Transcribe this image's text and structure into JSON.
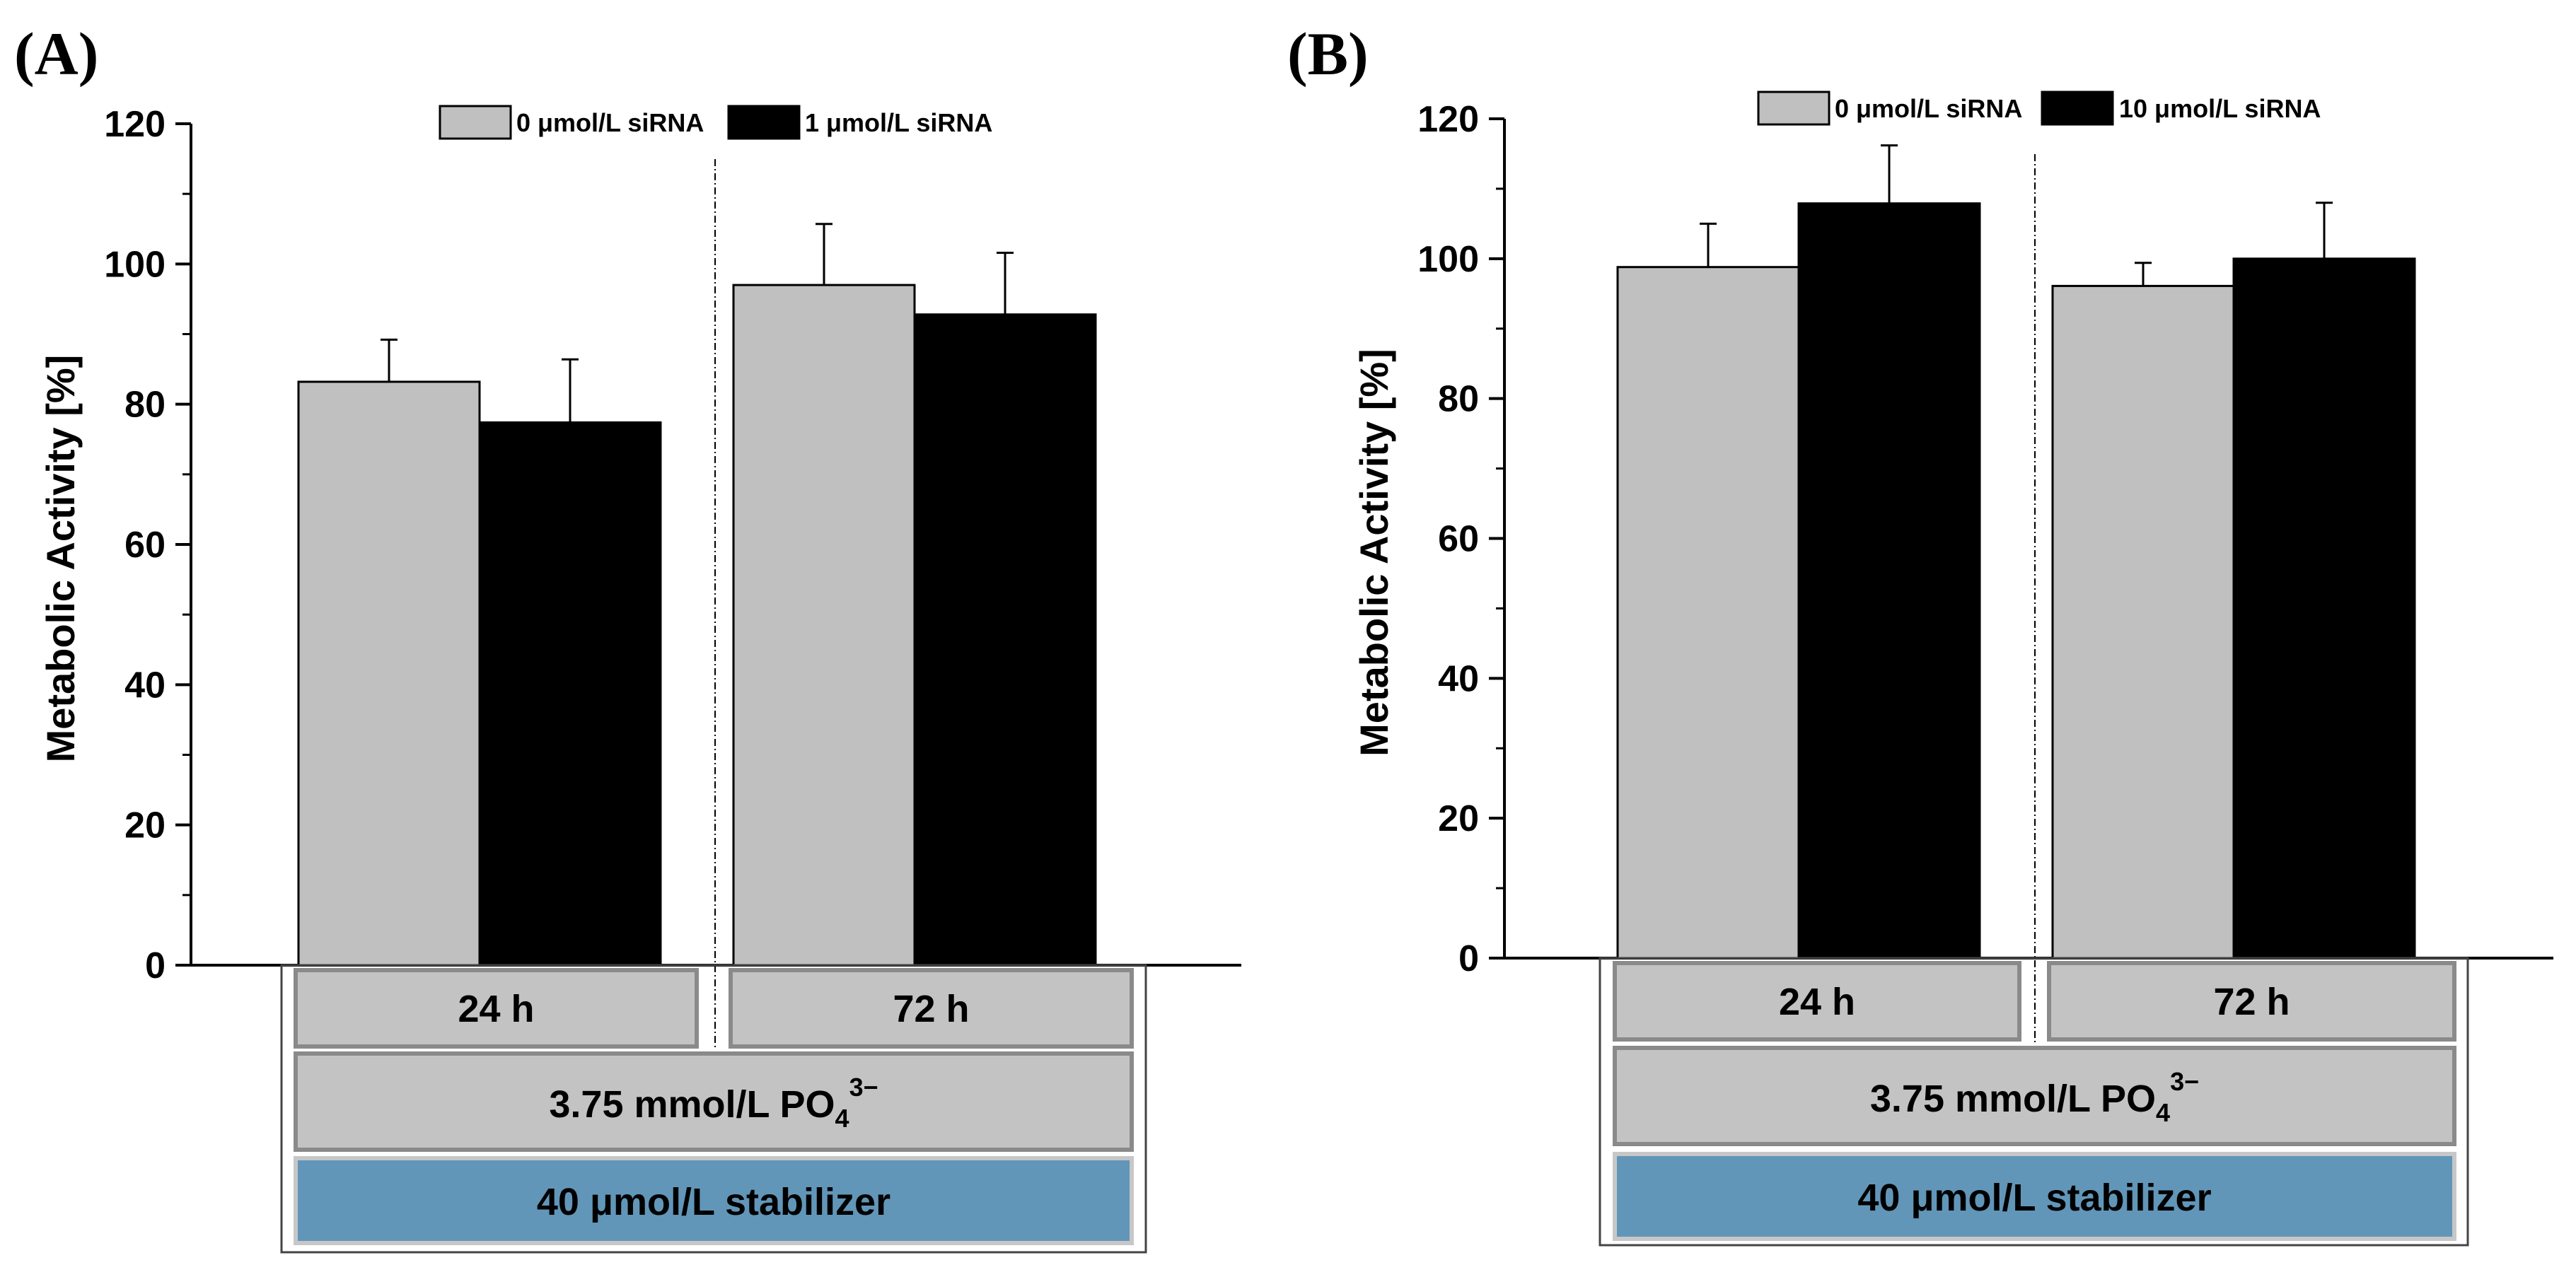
{
  "chart_data": [
    {
      "type": "bar",
      "panel_label": "(A)",
      "ylabel": "Metabolic Activity [%]",
      "ylim": [
        0,
        120
      ],
      "yticks": [
        "0",
        "20",
        "40",
        "60",
        "80",
        "100",
        "120"
      ],
      "series": [
        {
          "name": "0 μmol/L siRNA",
          "color": "#c0c0c0",
          "values": [
            83.2,
            97.0
          ],
          "errors": [
            6.0,
            8.7
          ]
        },
        {
          "name": "1 μmol/L siRNA",
          "color": "#000000",
          "values": [
            77.4,
            92.8
          ],
          "errors": [
            9.0,
            8.8
          ]
        }
      ],
      "time_labels": [
        "24 h",
        "72 h"
      ],
      "phosphate": {
        "prefix": "3.75 mmol/L PO",
        "sub": "4",
        "sup": "3−"
      },
      "stabilizer_label": "40 μmol/L stabilizer"
    },
    {
      "type": "bar",
      "panel_label": "(B)",
      "ylabel": "Metabolic Activity [%]",
      "ylim": [
        0,
        120
      ],
      "yticks": [
        "0",
        "20",
        "40",
        "60",
        "80",
        "100",
        "120"
      ],
      "series": [
        {
          "name": "0 μmol/L siRNA",
          "color": "#c0c0c0",
          "values": [
            98.8,
            96.1
          ],
          "errors": [
            6.2,
            3.3
          ]
        },
        {
          "name": "10 μmol/L siRNA",
          "color": "#000000",
          "values": [
            107.9,
            100.0
          ],
          "errors": [
            8.3,
            8.0
          ]
        }
      ],
      "time_labels": [
        "24 h",
        "72 h"
      ],
      "phosphate": {
        "prefix": "3.75 mmol/L PO",
        "sub": "4",
        "sup": "3−"
      },
      "stabilizer_label": "40 μmol/L stabilizer"
    }
  ],
  "colors": {
    "light_bar": "#c0c0c0",
    "dark_bar": "#000000",
    "stabilizer_box": "#6196b8",
    "grey_box": "#c3c3c3"
  }
}
